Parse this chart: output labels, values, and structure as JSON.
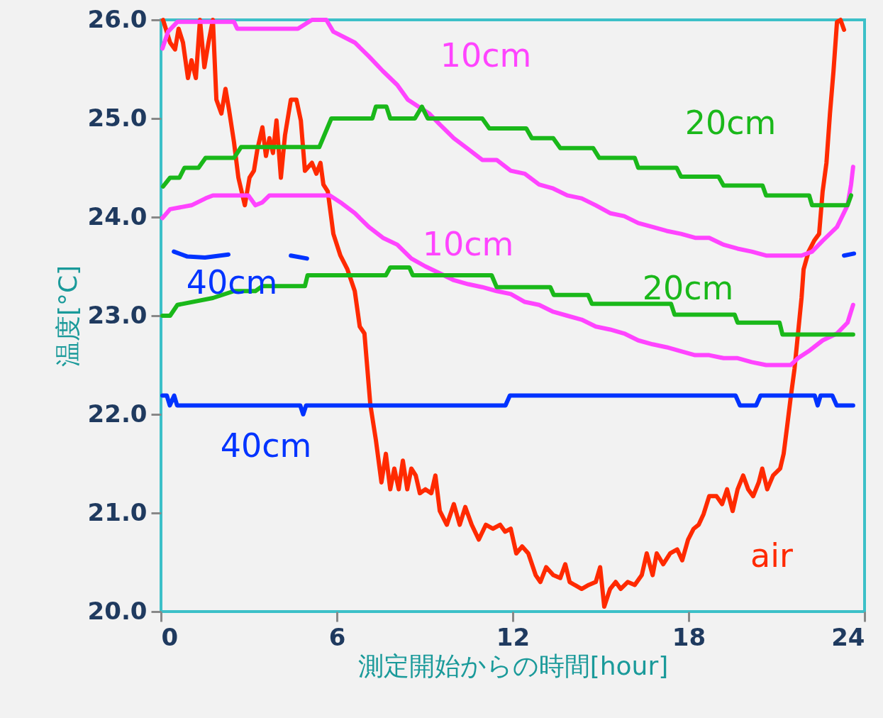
{
  "chart_data": {
    "type": "line",
    "xlabel": "測定開始からの時間[hour]",
    "ylabel": "温度[°C]",
    "xlim": [
      0,
      24
    ],
    "xticks": [
      0,
      6,
      12,
      18,
      24
    ],
    "ylim": [
      20,
      26
    ],
    "yticks": [
      {
        "value": 20,
        "label": "20.0"
      },
      {
        "value": 21,
        "label": "21.0"
      },
      {
        "value": 22,
        "label": "22.0"
      },
      {
        "value": 23,
        "label": "23.0"
      },
      {
        "value": 24,
        "label": "24.0"
      },
      {
        "value": 25,
        "label": "25.0"
      },
      {
        "value": 26,
        "label": "26.0"
      }
    ],
    "grid": false,
    "legend": false,
    "marker": "none",
    "line_style": "solid",
    "series": [
      {
        "name": "air",
        "color": "#ff2a00",
        "x": [
          0.07,
          0.31,
          0.48,
          0.6,
          0.75,
          0.92,
          1.04,
          1.19,
          1.33,
          1.48,
          1.62,
          1.77,
          1.89,
          2.06,
          2.2,
          2.32,
          2.49,
          2.64,
          2.86,
          3.02,
          3.17,
          3.29,
          3.46,
          3.58,
          3.7,
          3.82,
          3.94,
          4.09,
          4.23,
          4.43,
          4.62,
          4.77,
          4.91,
          5.15,
          5.3,
          5.44,
          5.54,
          5.69,
          5.88,
          6.12,
          6.36,
          6.61,
          6.78,
          6.94,
          7.04,
          7.14,
          7.33,
          7.52,
          7.67,
          7.82,
          7.96,
          8.11,
          8.25,
          8.4,
          8.54,
          8.69,
          8.83,
          9.02,
          9.22,
          9.36,
          9.51,
          9.75,
          9.99,
          10.19,
          10.38,
          10.6,
          10.84,
          11.08,
          11.32,
          11.57,
          11.74,
          11.93,
          12.12,
          12.32,
          12.53,
          12.78,
          12.94,
          13.14,
          13.38,
          13.62,
          13.79,
          13.94,
          14.11,
          14.35,
          14.59,
          14.83,
          14.98,
          15.12,
          15.32,
          15.51,
          15.68,
          15.92,
          16.16,
          16.4,
          16.57,
          16.77,
          16.91,
          17.13,
          17.37,
          17.61,
          17.78,
          17.98,
          18.17,
          18.34,
          18.51,
          18.7,
          18.95,
          19.14,
          19.31,
          19.5,
          19.67,
          19.86,
          20.03,
          20.2,
          20.39,
          20.51,
          20.68,
          20.88,
          21.12,
          21.24,
          21.36,
          21.48,
          21.61,
          21.73,
          21.85,
          21.92,
          22.09,
          22.28,
          22.45,
          22.57,
          22.7,
          22.82,
          22.94,
          23.06,
          23.18,
          23.3
        ],
        "values": [
          26.0,
          25.77,
          25.7,
          25.91,
          25.77,
          25.41,
          25.59,
          25.41,
          26.0,
          25.52,
          25.77,
          26.0,
          25.19,
          25.05,
          25.3,
          25.09,
          24.76,
          24.4,
          24.12,
          24.4,
          24.47,
          24.69,
          24.91,
          24.62,
          24.8,
          24.65,
          24.98,
          24.4,
          24.83,
          25.19,
          25.19,
          24.98,
          24.47,
          24.55,
          24.44,
          24.55,
          24.33,
          24.26,
          23.83,
          23.61,
          23.47,
          23.25,
          22.89,
          22.82,
          22.46,
          22.1,
          21.74,
          21.31,
          21.6,
          21.24,
          21.45,
          21.24,
          21.53,
          21.24,
          21.45,
          21.38,
          21.2,
          21.24,
          21.2,
          21.38,
          21.02,
          20.88,
          21.09,
          20.88,
          21.06,
          20.88,
          20.73,
          20.88,
          20.84,
          20.88,
          20.81,
          20.84,
          20.59,
          20.66,
          20.59,
          20.37,
          20.3,
          20.45,
          20.37,
          20.34,
          20.48,
          20.3,
          20.27,
          20.23,
          20.27,
          20.3,
          20.45,
          20.05,
          20.23,
          20.3,
          20.23,
          20.3,
          20.27,
          20.37,
          20.59,
          20.37,
          20.59,
          20.48,
          20.59,
          20.63,
          20.52,
          20.73,
          20.84,
          20.88,
          20.99,
          21.17,
          21.17,
          21.09,
          21.24,
          21.02,
          21.24,
          21.38,
          21.24,
          21.17,
          21.31,
          21.45,
          21.24,
          21.38,
          21.45,
          21.6,
          21.88,
          22.17,
          22.46,
          22.82,
          23.18,
          23.47,
          23.65,
          23.76,
          23.83,
          24.26,
          24.55,
          25.05,
          25.48,
          25.98,
          26.0,
          25.9
        ]
      },
      {
        "name": "10cm",
        "color": "#ff44ff",
        "x": [
          0.05,
          0.24,
          0.56,
          2.49,
          2.6,
          4.67,
          5.15,
          5.64,
          5.88,
          6.61,
          7.09,
          7.57,
          8.06,
          8.42,
          8.78,
          9.15,
          9.51,
          9.99,
          10.48,
          10.96,
          11.45,
          11.93,
          12.41,
          12.9,
          13.38,
          13.86,
          14.35,
          14.83,
          15.32,
          15.8,
          16.28,
          16.77,
          17.25,
          17.74,
          18.22,
          18.7,
          19.19,
          19.67,
          20.15,
          20.64,
          21.12,
          21.85,
          22.21,
          22.57,
          23.06,
          23.42,
          23.54,
          23.61
        ],
        "values": [
          25.71,
          25.88,
          25.98,
          25.98,
          25.91,
          25.91,
          26.0,
          26.0,
          25.88,
          25.77,
          25.63,
          25.48,
          25.34,
          25.19,
          25.12,
          25.05,
          24.94,
          24.8,
          24.69,
          24.58,
          24.58,
          24.47,
          24.44,
          24.33,
          24.29,
          24.22,
          24.19,
          24.12,
          24.04,
          24.01,
          23.94,
          23.9,
          23.86,
          23.83,
          23.79,
          23.79,
          23.72,
          23.68,
          23.65,
          23.61,
          23.61,
          23.61,
          23.65,
          23.76,
          23.9,
          24.12,
          24.33,
          24.51
        ]
      },
      {
        "name": "10cm",
        "color": "#ff44ff",
        "x": [
          0.05,
          0.31,
          1.04,
          1.52,
          1.77,
          2.98,
          3.22,
          3.46,
          3.7,
          5.76,
          6.12,
          6.61,
          7.09,
          7.57,
          8.06,
          8.54,
          9.02,
          9.51,
          9.99,
          10.48,
          10.96,
          11.45,
          11.93,
          12.41,
          12.9,
          13.38,
          13.86,
          14.35,
          14.83,
          15.32,
          15.8,
          16.28,
          16.77,
          17.25,
          17.74,
          18.22,
          18.7,
          19.19,
          19.67,
          20.15,
          20.64,
          21.12,
          21.48,
          21.73,
          22.09,
          22.57,
          23.06,
          23.42,
          23.61
        ],
        "values": [
          23.99,
          24.08,
          24.12,
          24.19,
          24.22,
          24.22,
          24.12,
          24.15,
          24.22,
          24.22,
          24.15,
          24.04,
          23.9,
          23.79,
          23.72,
          23.58,
          23.5,
          23.43,
          23.36,
          23.32,
          23.29,
          23.25,
          23.22,
          23.14,
          23.11,
          23.04,
          23.0,
          22.96,
          22.89,
          22.86,
          22.82,
          22.75,
          22.71,
          22.68,
          22.64,
          22.6,
          22.6,
          22.57,
          22.57,
          22.53,
          22.5,
          22.5,
          22.5,
          22.57,
          22.64,
          22.75,
          22.82,
          22.93,
          23.11
        ]
      },
      {
        "name": "20cm",
        "color": "#1ab81a",
        "x": [
          0.07,
          0.31,
          0.63,
          0.8,
          1.28,
          1.52,
          2.49,
          2.73,
          5.4,
          5.81,
          7.21,
          7.33,
          7.69,
          7.82,
          8.66,
          8.9,
          9.1,
          10.96,
          11.2,
          12.46,
          12.65,
          13.38,
          13.62,
          14.74,
          14.95,
          16.16,
          16.28,
          17.59,
          17.74,
          19.02,
          19.19,
          20.52,
          20.64,
          22.11,
          22.21,
          23.42,
          23.54
        ],
        "values": [
          24.31,
          24.4,
          24.4,
          24.5,
          24.5,
          24.6,
          24.6,
          24.71,
          24.71,
          25.0,
          25.0,
          25.12,
          25.12,
          25.0,
          25.0,
          25.12,
          25.0,
          25.0,
          24.9,
          24.9,
          24.8,
          24.8,
          24.7,
          24.7,
          24.6,
          24.6,
          24.5,
          24.5,
          24.41,
          24.41,
          24.32,
          24.32,
          24.22,
          24.22,
          24.12,
          24.12,
          24.22
        ]
      },
      {
        "name": "20cm",
        "color": "#1ab81a",
        "x": [
          0.05,
          0.31,
          0.56,
          1.77,
          2.49,
          3.22,
          3.46,
          4.91,
          5.0,
          7.67,
          7.82,
          8.47,
          8.59,
          11.28,
          11.45,
          13.28,
          13.4,
          14.57,
          14.7,
          17.4,
          17.52,
          19.57,
          19.67,
          21.1,
          21.2,
          23.61
        ],
        "values": [
          23.0,
          23.0,
          23.11,
          23.18,
          23.25,
          23.25,
          23.3,
          23.3,
          23.41,
          23.41,
          23.49,
          23.49,
          23.41,
          23.41,
          23.29,
          23.29,
          23.21,
          23.21,
          23.12,
          23.12,
          23.01,
          23.01,
          22.93,
          22.93,
          22.81,
          22.81
        ]
      },
      {
        "name": "40cm",
        "color": "#0033ff",
        "x": [
          0.44,
          0.9,
          1.5,
          2.3,
          2.4,
          4.43,
          4.98,
          5.0,
          23.3,
          23.64
        ],
        "values": [
          23.65,
          23.6,
          23.59,
          23.62,
          null,
          23.61,
          23.58,
          null,
          23.61,
          23.63
        ]
      },
      {
        "name": "40cm",
        "color": "#0033ff",
        "x": [
          0.05,
          0.2,
          0.3,
          0.45,
          0.55,
          4.75,
          4.85,
          4.95,
          11.75,
          11.9,
          19.6,
          19.75,
          20.3,
          20.45,
          22.3,
          22.4,
          22.5,
          22.9,
          23.05,
          23.61
        ],
        "values": [
          22.19,
          22.19,
          22.09,
          22.19,
          22.09,
          22.09,
          22.0,
          22.09,
          22.09,
          22.19,
          22.19,
          22.09,
          22.09,
          22.19,
          22.19,
          22.09,
          22.19,
          22.19,
          22.09,
          22.09
        ]
      }
    ]
  }
}
